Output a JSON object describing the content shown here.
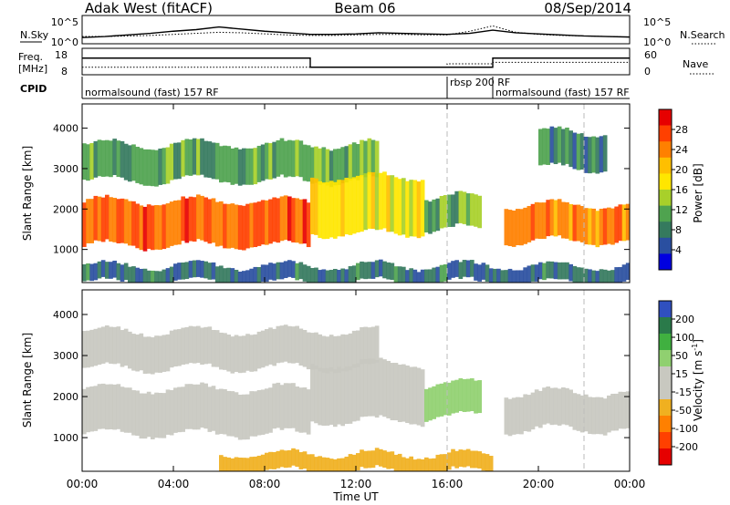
{
  "header": {
    "title_left": "Adak West (fitACF)",
    "title_center": "Beam 06",
    "title_right": "08/Sep/2014"
  },
  "noise_panel": {
    "left_label": "N.Sky",
    "left_ticks": [
      "10^5",
      "10^0"
    ],
    "right_ticks": [
      "10^5",
      "10^0"
    ],
    "right_label": "N.Search"
  },
  "freq_panel": {
    "left_label_1": "Freq.",
    "left_label_2": "[MHz]",
    "left_ticks": [
      "18",
      "8"
    ],
    "right_ticks": [
      "60",
      "0"
    ],
    "right_label": "Nave",
    "cpid_label": "CPID"
  },
  "cpid_segments": [
    {
      "label": "normalsound (fast) 157 RF",
      "start_hour": 0
    },
    {
      "label": "rbsp 200 RF",
      "start_hour": 16
    },
    {
      "label": "normalsound (fast) 157 RF",
      "start_hour": 18
    }
  ],
  "colorbars": {
    "power": {
      "label": "Power [dB]",
      "ticks": [
        "28",
        "24",
        "20",
        "16",
        "12",
        "8",
        "4"
      ],
      "colors": [
        "#e60000",
        "#ff4000",
        "#ff8000",
        "#ffbf00",
        "#ffe600",
        "#a8d02a",
        "#4fa34f",
        "#357a5e",
        "#2a4fa0",
        "#0000e0"
      ]
    },
    "velocity": {
      "label": "Velocity [m s",
      "label_sup": "-1",
      "label_end": "]",
      "ticks": [
        "200",
        "100",
        "50",
        "15",
        "-15",
        "-50",
        "-100",
        "-200"
      ],
      "colors": [
        "#3050c0",
        "#2a7a4a",
        "#40b040",
        "#90d070",
        "#c8c8c0",
        "#c8c8c0",
        "#f0b020",
        "#ff8000",
        "#ff4000",
        "#e60000"
      ]
    }
  },
  "axes": {
    "xlabel": "Time UT",
    "ylabel": "Slant Range [km]",
    "x_ticks": [
      "00:00",
      "04:00",
      "08:00",
      "12:00",
      "16:00",
      "20:00",
      "00:00"
    ],
    "y_ticks": [
      "4000",
      "3000",
      "2000",
      "1000"
    ]
  },
  "chart_data": [
    {
      "type": "line",
      "title": "",
      "series": [
        {
          "name": "N.Sky",
          "values": [
            1.0,
            1.2,
            1.5,
            1.8,
            2.2,
            2.5,
            3.0,
            2.6,
            2.2,
            1.9,
            1.6,
            1.6,
            1.7,
            1.9,
            1.8,
            1.7,
            1.6,
            1.8,
            2.4,
            1.9,
            1.7,
            1.5,
            1.3,
            1.2,
            1.1
          ]
        },
        {
          "name": "N.Search",
          "values": [
            1.2,
            1.2,
            1.3,
            1.4,
            1.6,
            1.8,
            2.0,
            1.9,
            1.7,
            1.5,
            1.4,
            1.4,
            1.5,
            1.6,
            1.6,
            1.5,
            1.5,
            2.2,
            3.2,
            2.0,
            1.6,
            1.4,
            1.3,
            1.2,
            1.1
          ]
        }
      ],
      "x": [
        0,
        1,
        2,
        3,
        4,
        5,
        6,
        7,
        8,
        9,
        10,
        11,
        12,
        13,
        14,
        15,
        16,
        17,
        18,
        19,
        20,
        21,
        22,
        23,
        24
      ],
      "ylim": [
        0,
        5
      ]
    },
    {
      "type": "line",
      "title": "",
      "series": [
        {
          "name": "Freq.",
          "x": [
            0,
            10,
            10,
            18,
            18,
            24
          ],
          "values": [
            14.5,
            14.5,
            10.5,
            10.5,
            14.5,
            14.5
          ]
        },
        {
          "name": "Nave",
          "x": [
            0,
            16,
            16,
            18,
            18,
            24
          ],
          "values": [
            15,
            15,
            24,
            24,
            28,
            28
          ]
        }
      ],
      "ylim_left": [
        8,
        18
      ],
      "ylim_right": [
        0,
        60
      ]
    },
    {
      "type": "heatmap",
      "title": "",
      "xlabel": "Time UT",
      "ylabel": "Slant Range [km]",
      "xlim": [
        0,
        24
      ],
      "ylim": [
        180,
        4600
      ],
      "colorbar": "Power [dB]",
      "bands": [
        {
          "range_km": [
            1100,
            2200
          ],
          "x": [
            0,
            10
          ],
          "value_db": 26
        },
        {
          "range_km": [
            2700,
            3600
          ],
          "x": [
            0,
            13
          ],
          "value_db": 12
        },
        {
          "range_km": [
            1400,
            2800
          ],
          "x": [
            10,
            15
          ],
          "value_db": 18
        },
        {
          "range_km": [
            1200,
            2100
          ],
          "x": [
            18.5,
            24
          ],
          "value_db": 24
        },
        {
          "range_km": [
            3000,
            3900
          ],
          "x": [
            20,
            23
          ],
          "value_db": 10
        },
        {
          "range_km": [
            1500,
            2300
          ],
          "x": [
            15,
            17.5
          ],
          "value_db": 12
        },
        {
          "range_km": [
            180,
            600
          ],
          "x": [
            0,
            24
          ],
          "value_db": 8
        }
      ]
    },
    {
      "type": "heatmap",
      "title": "",
      "xlabel": "Time UT",
      "ylabel": "Slant Range [km]",
      "xlim": [
        0,
        24
      ],
      "ylim": [
        180,
        4600
      ],
      "colorbar": "Velocity [m s-1]",
      "bands": [
        {
          "range_km": [
            1100,
            2200
          ],
          "x": [
            0,
            10
          ],
          "value_ms": 0
        },
        {
          "range_km": [
            2700,
            3600
          ],
          "x": [
            0,
            13
          ],
          "value_ms": 0
        },
        {
          "range_km": [
            1400,
            2800
          ],
          "x": [
            10,
            15
          ],
          "value_ms": -20
        },
        {
          "range_km": [
            1200,
            2100
          ],
          "x": [
            18.5,
            24
          ],
          "value_ms": 0
        },
        {
          "range_km": [
            1500,
            2300
          ],
          "x": [
            15,
            17.5
          ],
          "value_ms": 40
        },
        {
          "range_km": [
            180,
            600
          ],
          "x": [
            6,
            18
          ],
          "value_ms": -60
        }
      ]
    }
  ]
}
